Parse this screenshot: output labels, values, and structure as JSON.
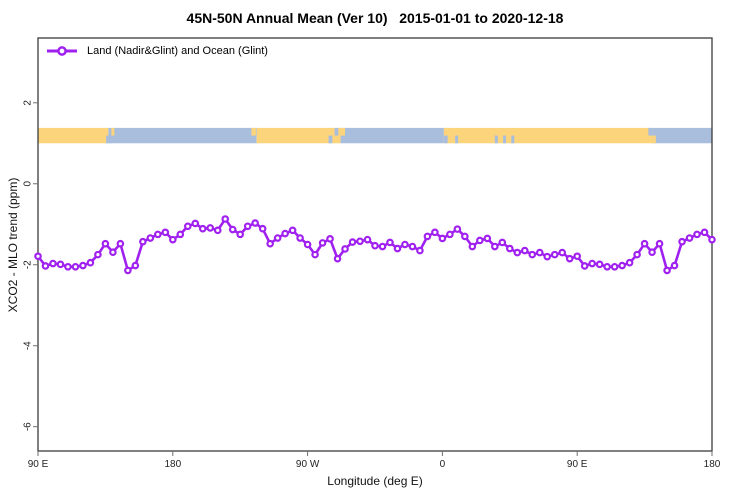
{
  "colors": {
    "line": "#A020F0",
    "marker_fill": "#ffffff",
    "land": "#FBD47C",
    "ocean": "#A9BEDC",
    "frame": "#3b3b3b",
    "tick": "#6e6e6e",
    "tick_text": "#222222"
  },
  "legend": {
    "label": "Land (Nadir&Glint) and Ocean (Glint)"
  },
  "chart_data": {
    "type": "line",
    "title": "45N-50N Annual Mean (Ver 10)   2015-01-01 to 2020-12-18",
    "xlabel": "Longitude (deg E)",
    "ylabel": "XCO2 - MLO trend (ppm)",
    "xlim": [
      90,
      540
    ],
    "ylim": [
      -6.6,
      3.6
    ],
    "grid": "off",
    "legend_position": "top-left-inside",
    "x_ticks": [
      {
        "value": 90,
        "label": "90 E"
      },
      {
        "value": 180,
        "label": "180"
      },
      {
        "value": 270,
        "label": "90 W"
      },
      {
        "value": 360,
        "label": "0"
      },
      {
        "value": 450,
        "label": "90 E"
      },
      {
        "value": 540,
        "label": "180"
      }
    ],
    "y_ticks": [
      {
        "value": 2,
        "label": "2"
      },
      {
        "value": 0,
        "label": "0"
      },
      {
        "value": -2,
        "label": "-2"
      },
      {
        "value": -4,
        "label": "-4"
      },
      {
        "value": -6,
        "label": "-6"
      }
    ],
    "series": [
      {
        "name": "Land (Nadir&Glint) and Ocean (Glint)",
        "color": "#A020F0",
        "marker": "open-circle",
        "x": [
          90,
          95,
          100,
          105,
          110,
          115,
          120,
          125,
          130,
          135,
          140,
          145,
          150,
          155,
          160,
          165,
          170,
          175,
          180,
          185,
          190,
          195,
          200,
          205,
          210,
          215,
          220,
          225,
          230,
          235,
          240,
          245,
          250,
          255,
          260,
          265,
          270,
          275,
          280,
          285,
          290,
          295,
          300,
          305,
          310,
          315,
          320,
          325,
          330,
          335,
          340,
          345,
          350,
          355,
          360,
          365,
          370,
          375,
          380,
          385,
          390,
          395,
          400,
          405,
          410,
          415,
          420,
          425,
          430,
          435,
          440,
          445,
          450,
          455,
          460,
          465,
          470,
          475,
          480,
          485,
          490,
          495,
          500,
          505,
          510,
          515,
          520,
          525,
          530,
          535,
          540
        ],
        "y": [
          -1.79,
          -2.03,
          -1.97,
          -1.99,
          -2.05,
          -2.05,
          -2.02,
          -1.95,
          -1.75,
          -1.48,
          -1.69,
          -1.48,
          -2.14,
          -2.02,
          -1.43,
          -1.34,
          -1.25,
          -1.2,
          -1.38,
          -1.25,
          -1.05,
          -0.98,
          -1.11,
          -1.09,
          -1.15,
          -0.87,
          -1.13,
          -1.25,
          -1.05,
          -0.97,
          -1.11,
          -1.48,
          -1.34,
          -1.23,
          -1.15,
          -1.34,
          -1.5,
          -1.75,
          -1.46,
          -1.36,
          -1.85,
          -1.61,
          -1.44,
          -1.42,
          -1.38,
          -1.53,
          -1.55,
          -1.45,
          -1.6,
          -1.5,
          -1.55,
          -1.65,
          -1.3,
          -1.2,
          -1.35,
          -1.25,
          -1.12,
          -1.3,
          -1.55,
          -1.4,
          -1.35,
          -1.55,
          -1.45,
          -1.6,
          -1.7,
          -1.65,
          -1.75,
          -1.7,
          -1.8,
          -1.75,
          -1.7,
          -1.85,
          -1.79,
          -2.03,
          -1.97,
          -1.99,
          -2.05,
          -2.05,
          -2.02,
          -1.95,
          -1.75,
          -1.48,
          -1.69,
          -1.48,
          -2.14,
          -2.02,
          -1.43,
          -1.34,
          -1.25,
          -1.2,
          -1.38
        ]
      }
    ],
    "map_strip": {
      "y_range": [
        1.0,
        1.38
      ],
      "land_color": "#FBD47C",
      "ocean_color": "#A9BEDC",
      "segments": [
        {
          "from": 90,
          "to": 137,
          "surface": "land"
        },
        {
          "from": 137,
          "to": 236,
          "surface": "ocean"
        },
        {
          "from": 236,
          "to": 292,
          "surface": "land"
        },
        {
          "from": 292,
          "to": 361,
          "surface": "ocean"
        },
        {
          "from": 361,
          "to": 500,
          "surface": "land"
        },
        {
          "from": 500,
          "to": 540,
          "surface": "ocean"
        }
      ],
      "details": [
        {
          "from": 135.5,
          "to": 139,
          "surface": "ocean",
          "part": "bottom"
        },
        {
          "from": 139,
          "to": 141,
          "surface": "land",
          "part": "top"
        },
        {
          "from": 232.5,
          "to": 235.5,
          "surface": "land",
          "part": "top"
        },
        {
          "from": 284,
          "to": 286.5,
          "surface": "ocean",
          "part": "bottom"
        },
        {
          "from": 288,
          "to": 290.5,
          "surface": "ocean",
          "part": "top"
        },
        {
          "from": 292,
          "to": 295,
          "surface": "land",
          "part": "top"
        },
        {
          "from": 361,
          "to": 363.5,
          "surface": "ocean",
          "part": "bottom"
        },
        {
          "from": 368.5,
          "to": 370.5,
          "surface": "ocean",
          "part": "bottom"
        },
        {
          "from": 395,
          "to": 397,
          "surface": "ocean",
          "part": "bottom"
        },
        {
          "from": 400.5,
          "to": 402.5,
          "surface": "ocean",
          "part": "bottom"
        },
        {
          "from": 406,
          "to": 408,
          "surface": "ocean",
          "part": "bottom"
        },
        {
          "from": 497.5,
          "to": 500,
          "surface": "ocean",
          "part": "top"
        },
        {
          "from": 500,
          "to": 502.5,
          "surface": "land",
          "part": "bottom"
        }
      ]
    }
  }
}
